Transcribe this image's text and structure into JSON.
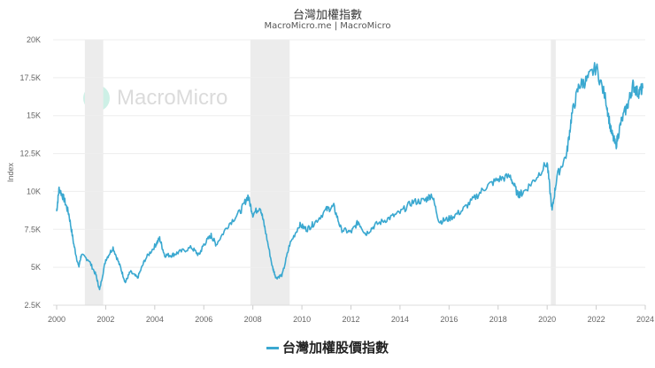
{
  "chart_data": {
    "type": "line",
    "title": "台灣加權指數",
    "subtitle": "MacroMicro.me | MacroMicro",
    "watermark": "MacroMicro",
    "ylabel": "Index",
    "xlabel": "",
    "ylim": [
      2500,
      20000
    ],
    "xlim": [
      2000,
      2024
    ],
    "yticks": [
      {
        "v": 2500,
        "label": "2.5K"
      },
      {
        "v": 5000,
        "label": "5K"
      },
      {
        "v": 7500,
        "label": "7.5K"
      },
      {
        "v": 10000,
        "label": "10K"
      },
      {
        "v": 12500,
        "label": "12.5K"
      },
      {
        "v": 15000,
        "label": "15K"
      },
      {
        "v": 17500,
        "label": "17.5K"
      },
      {
        "v": 20000,
        "label": "20K"
      }
    ],
    "xticks": [
      "2000",
      "2002",
      "2004",
      "2006",
      "2008",
      "2010",
      "2012",
      "2014",
      "2016",
      "2018",
      "2020",
      "2022",
      "2024"
    ],
    "grid": true,
    "legend_position": "bottom",
    "recession_periods": [
      [
        2001.15,
        2001.9
      ],
      [
        2007.9,
        2009.5
      ],
      [
        2020.15,
        2020.35
      ]
    ],
    "colors": {
      "series": "#3aa8d0",
      "recession": "#ececec"
    },
    "series": [
      {
        "name": "台灣加權股價指數",
        "x": [
          2000.0,
          2000.1,
          2000.3,
          2000.5,
          2000.7,
          2000.9,
          2001.0,
          2001.3,
          2001.6,
          2001.75,
          2002.0,
          2002.3,
          2002.6,
          2002.8,
          2003.0,
          2003.3,
          2003.6,
          2004.0,
          2004.2,
          2004.4,
          2004.7,
          2005.0,
          2005.5,
          2005.8,
          2006.0,
          2006.3,
          2006.5,
          2007.0,
          2007.5,
          2007.8,
          2008.0,
          2008.3,
          2008.5,
          2008.8,
          2008.95,
          2009.2,
          2009.5,
          2009.9,
          2010.2,
          2010.5,
          2011.0,
          2011.3,
          2011.6,
          2012.0,
          2012.3,
          2012.6,
          2013.0,
          2013.5,
          2014.0,
          2014.5,
          2015.0,
          2015.3,
          2015.6,
          2016.0,
          2016.5,
          2017.0,
          2017.5,
          2018.0,
          2018.5,
          2018.8,
          2019.0,
          2019.5,
          2020.0,
          2020.2,
          2020.4,
          2020.8,
          2021.0,
          2021.3,
          2021.6,
          2022.0,
          2022.4,
          2022.6,
          2022.8,
          2023.0,
          2023.3,
          2023.5,
          2023.7,
          2023.9
        ],
        "values": [
          8700,
          10200,
          9500,
          8500,
          6500,
          5000,
          5800,
          5500,
          4500,
          3500,
          5500,
          6300,
          5000,
          4000,
          4700,
          4300,
          5500,
          6400,
          6900,
          5800,
          5800,
          6000,
          6300,
          5800,
          6500,
          7100,
          6500,
          7800,
          8700,
          9700,
          8500,
          9000,
          7500,
          5000,
          4300,
          4500,
          6500,
          7800,
          7500,
          7900,
          8800,
          9000,
          7500,
          7300,
          8000,
          7200,
          7800,
          8200,
          8600,
          9300,
          9400,
          9800,
          8000,
          8200,
          8700,
          9500,
          10300,
          10800,
          11000,
          9800,
          9900,
          10800,
          11900,
          8700,
          11000,
          12500,
          15000,
          17000,
          17300,
          18200,
          16000,
          14000,
          13000,
          14500,
          15800,
          17000,
          16500,
          16800
        ]
      }
    ]
  }
}
